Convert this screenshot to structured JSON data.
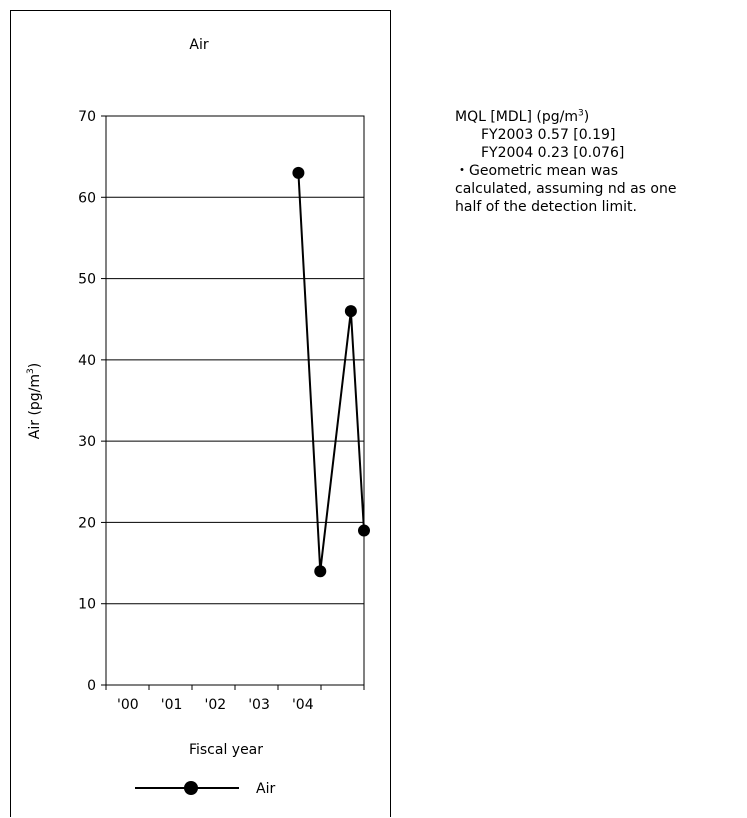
{
  "chart_data": {
    "type": "line",
    "title": "Air",
    "xlabel": "Fiscal year",
    "ylabel_prefix": "Air (pg/m",
    "ylabel_sup": "3",
    "ylabel_suffix": ")",
    "x_ticks": [
      "'00",
      "'01",
      "'02",
      "'03",
      "'04"
    ],
    "xlim": [
      0,
      5.9
    ],
    "ylim": [
      0,
      70
    ],
    "y_ticks": [
      0,
      10,
      20,
      30,
      40,
      50,
      60,
      70
    ],
    "grid": true,
    "legend_position": "bottom",
    "series": [
      {
        "name": "Air",
        "color": "#000000",
        "marker": "circle",
        "x": [
          4.4,
          4.9,
          5.6,
          5.9
        ],
        "y": [
          63,
          14,
          46,
          19
        ]
      }
    ]
  },
  "notes": {
    "mql_prefix": "MQL [MDL] (pg/m",
    "mql_sup": "3",
    "mql_suffix": ")",
    "fy2003": "FY2003  0.57 [0.19]",
    "fy2004": "FY2004  0.23 [0.076]",
    "geo_line1": "・Geometric mean was",
    "geo_line2": "calculated, assuming nd as one",
    "geo_line3": "half of the detection limit."
  }
}
